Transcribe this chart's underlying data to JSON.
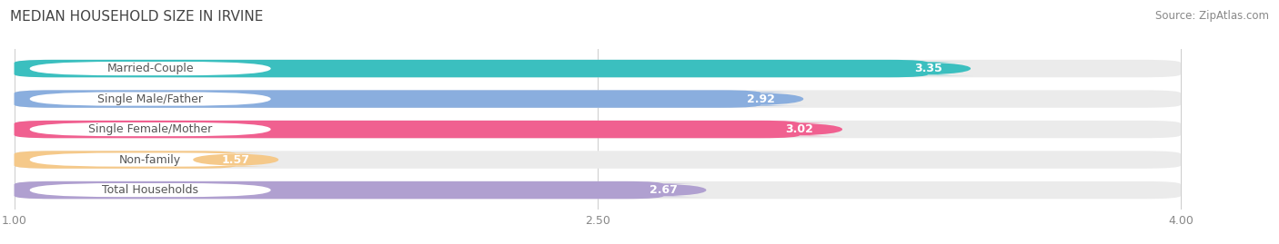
{
  "title": "MEDIAN HOUSEHOLD SIZE IN IRVINE",
  "source": "Source: ZipAtlas.com",
  "categories": [
    "Married-Couple",
    "Single Male/Father",
    "Single Female/Mother",
    "Non-family",
    "Total Households"
  ],
  "values": [
    3.35,
    2.92,
    3.02,
    1.57,
    2.67
  ],
  "bar_colors": [
    "#3bbfbf",
    "#8aaede",
    "#f06090",
    "#f5c98a",
    "#b0a0d0"
  ],
  "bar_bg_color": "#ebebeb",
  "value_label_colors": [
    "#3bbfbf",
    "#8aaede",
    "#f06090",
    "#f5c98a",
    "#b0a0d0"
  ],
  "label_text_colors": [
    "#555555",
    "#555555",
    "#555555",
    "#555555",
    "#555555"
  ],
  "xlim": [
    1.0,
    4.0
  ],
  "xticks": [
    1.0,
    2.5,
    4.0
  ],
  "title_fontsize": 11,
  "source_fontsize": 8.5,
  "label_fontsize": 9,
  "value_fontsize": 9,
  "bar_height": 0.58,
  "background_color": "#ffffff"
}
